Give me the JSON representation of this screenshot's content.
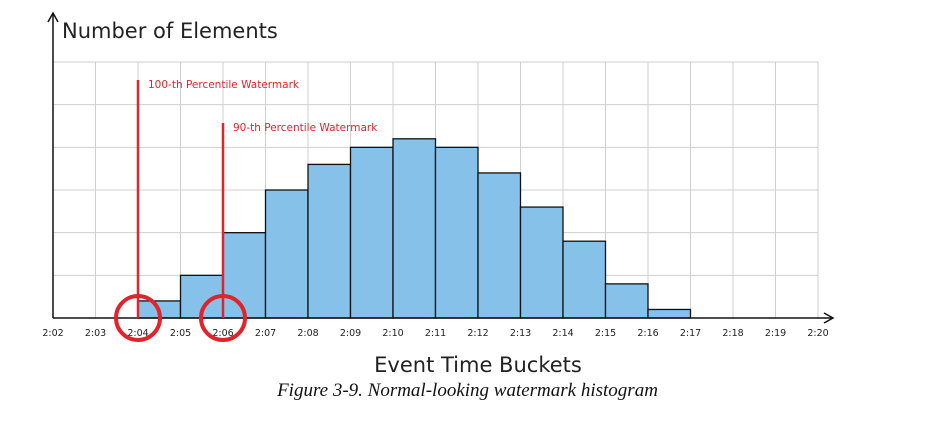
{
  "chart_data": {
    "type": "bar",
    "ylabel": "Number of Elements",
    "xlabel": "Event Time Buckets",
    "ticks": [
      "2:02",
      "2:03",
      "2:04",
      "2:05",
      "2:06",
      "2:07",
      "2:08",
      "2:09",
      "2:10",
      "2:11",
      "2:12",
      "2:13",
      "2:14",
      "2:15",
      "2:16",
      "2:17",
      "2:18",
      "2:19",
      "2:20"
    ],
    "bins": [
      {
        "start": "2:04",
        "end": "2:05",
        "value": 0.4
      },
      {
        "start": "2:05",
        "end": "2:06",
        "value": 1.0
      },
      {
        "start": "2:06",
        "end": "2:07",
        "value": 2.0
      },
      {
        "start": "2:07",
        "end": "2:08",
        "value": 3.0
      },
      {
        "start": "2:08",
        "end": "2:09",
        "value": 3.6
      },
      {
        "start": "2:09",
        "end": "2:10",
        "value": 4.0
      },
      {
        "start": "2:10",
        "end": "2:11",
        "value": 4.2
      },
      {
        "start": "2:11",
        "end": "2:12",
        "value": 4.0
      },
      {
        "start": "2:12",
        "end": "2:13",
        "value": 3.4
      },
      {
        "start": "2:13",
        "end": "2:14",
        "value": 2.6
      },
      {
        "start": "2:14",
        "end": "2:15",
        "value": 1.8
      },
      {
        "start": "2:15",
        "end": "2:16",
        "value": 0.8
      },
      {
        "start": "2:16",
        "end": "2:17",
        "value": 0.2
      }
    ],
    "ylim": [
      0,
      6
    ],
    "grid": true,
    "bar_color": "#85c1e9",
    "watermarks": [
      {
        "label": "100-th Percentile Watermark",
        "time": "2:04",
        "color": "#e0242b"
      },
      {
        "label": "90-th Percentile Watermark",
        "time": "2:06",
        "color": "#e0242b"
      }
    ]
  },
  "caption": "Figure 3-9. Normal-looking watermark histogram"
}
